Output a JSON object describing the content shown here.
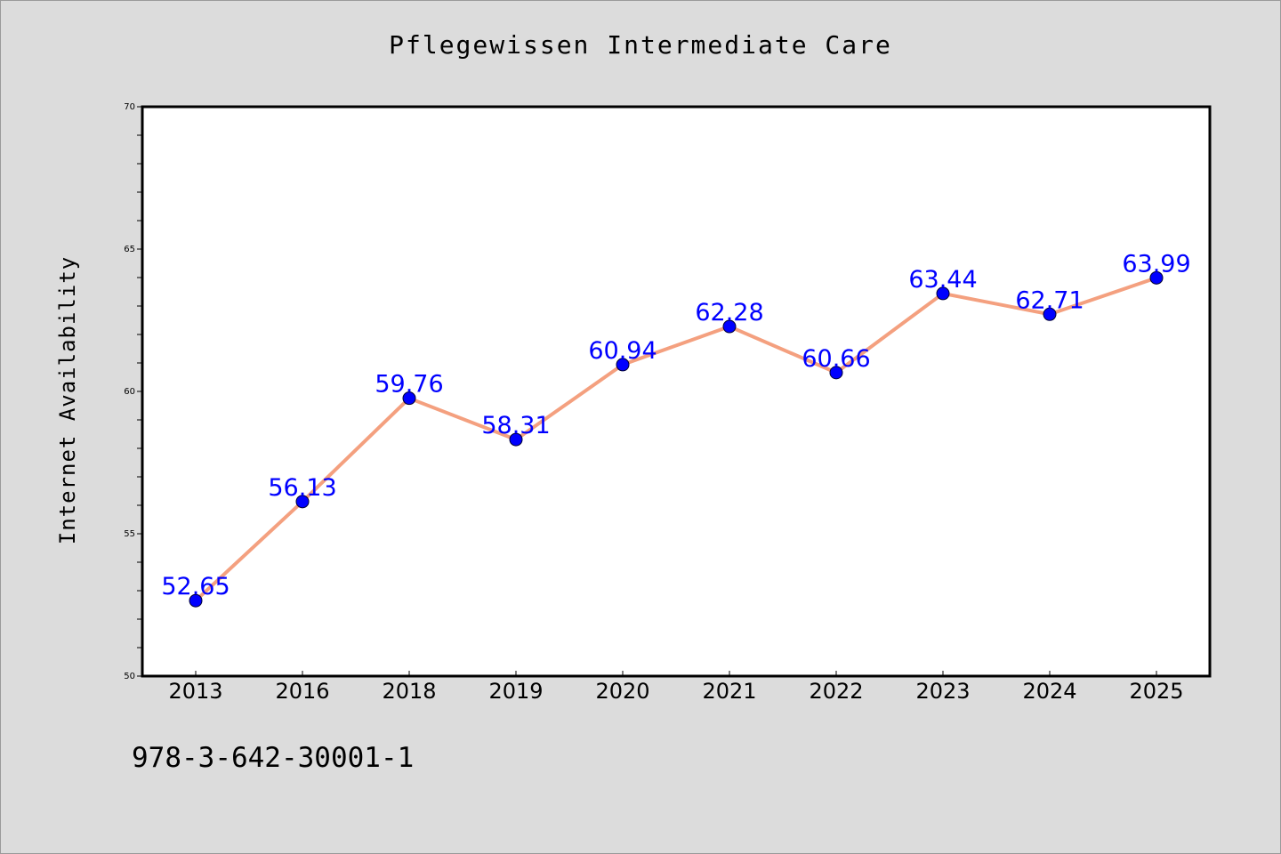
{
  "chart_data": {
    "type": "line",
    "title": "Pflegewissen Intermediate Care",
    "xlabel": "",
    "ylabel": "Internet Availability",
    "categories": [
      "2013",
      "2016",
      "2018",
      "2019",
      "2020",
      "2021",
      "2022",
      "2023",
      "2024",
      "2025"
    ],
    "series": [
      {
        "values": [
          52.65,
          56.13,
          59.76,
          58.31,
          60.94,
          62.28,
          60.66,
          63.44,
          62.71,
          63.99
        ],
        "labels": [
          "52.65",
          "56.13",
          "59.76",
          "58.31",
          "60.94",
          "62.28",
          "60.66",
          "63.44",
          "62.71",
          "63.99"
        ]
      }
    ],
    "ylim": [
      50,
      70
    ],
    "yticks": [
      "50",
      "55",
      "60",
      "65",
      "70"
    ],
    "grid": false,
    "legend": "none",
    "colors": {
      "line": "#f4a07f",
      "marker": "#0000ff",
      "label": "#0000ff",
      "plot_bg": "#ffffff",
      "page_bg": "#dcdcdc"
    }
  },
  "footer": {
    "code": "978-3-642-30001-1"
  }
}
